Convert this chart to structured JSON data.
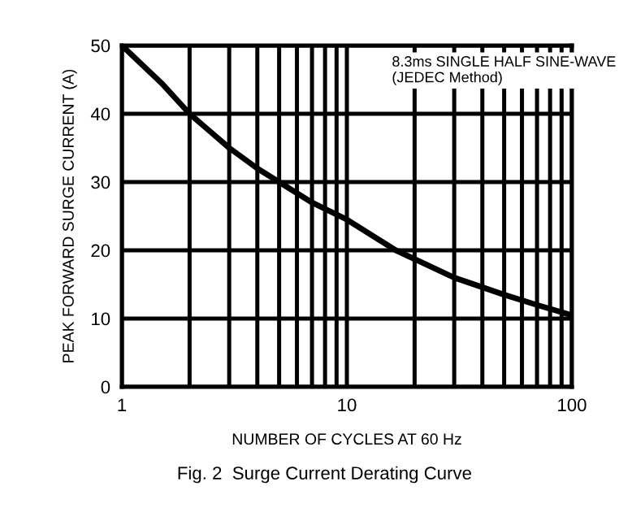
{
  "chart_data": {
    "type": "line",
    "xlabel": "NUMBER OF CYCLES AT 60 Hz",
    "ylabel": "PEAK FORWARD SURGE CURRENT (A)",
    "x": [
      1,
      1.5,
      2,
      3,
      4,
      5,
      7,
      10,
      16.5,
      30,
      50,
      70,
      100
    ],
    "series": [
      {
        "color": "#000000",
        "values": [
          50,
          44.5,
          40,
          35,
          32,
          30,
          27,
          24.5,
          20,
          16,
          13.5,
          12,
          10.5
        ]
      }
    ],
    "log": "x",
    "xlim": [
      1,
      100
    ],
    "ylim": [
      0,
      50
    ],
    "xticks": [
      1,
      {
        "value": 2,
        "label": null
      },
      {
        "value": 3,
        "label": null
      },
      {
        "value": 4,
        "label": null
      },
      {
        "value": 5,
        "label": null
      },
      {
        "value": 6,
        "label": null
      },
      {
        "value": 7,
        "label": null
      },
      {
        "value": 8,
        "label": null
      },
      {
        "value": 9,
        "label": null
      },
      10,
      {
        "value": 20,
        "label": null
      },
      {
        "value": 30,
        "label": null
      },
      {
        "value": 40,
        "label": null
      },
      {
        "value": 50,
        "label": null
      },
      {
        "value": 60,
        "label": null
      },
      {
        "value": 70,
        "label": null
      },
      {
        "value": 80,
        "label": null
      },
      {
        "value": 90,
        "label": null
      },
      100
    ],
    "yticks": [
      0,
      10,
      20,
      30,
      40,
      50
    ],
    "grid": true,
    "marker": "none",
    "line_style": "solid",
    "annotations": [
      "8.3ms SINGLE HALF SINE-WAVE\n(JEDEC Method)",
      "Fig. 2  Surge Current Derating Curve"
    ]
  }
}
